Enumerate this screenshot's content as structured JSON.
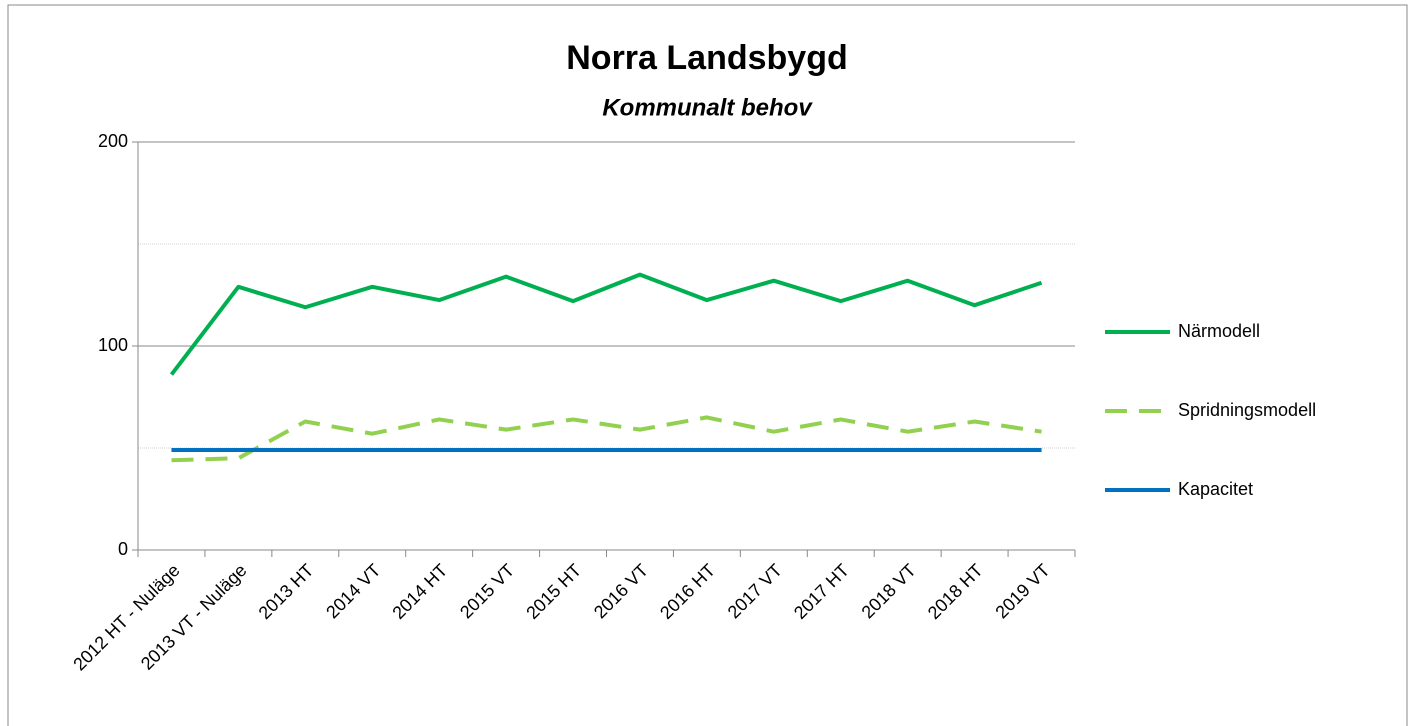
{
  "chart_data": {
    "type": "line",
    "title": "Norra Landsbygd",
    "subtitle": "Kommunalt behov",
    "categories": [
      "2012 HT - Nuläge",
      "2013 VT - Nuläge",
      "2013 HT",
      "2014 VT",
      "2014 HT",
      "2015 VT",
      "2015 HT",
      "2016 VT",
      "2016 HT",
      "2017 VT",
      "2017 HT",
      "2018 VT",
      "2018 HT",
      "2019 VT"
    ],
    "series": [
      {
        "name": "Närmodell",
        "color": "#00b050",
        "dash": false,
        "values": [
          86,
          129,
          119,
          129,
          122.5,
          134,
          122,
          135,
          122.5,
          132,
          122,
          132,
          120,
          131
        ]
      },
      {
        "name": "Spridningsmodell",
        "color": "#92d050",
        "dash": true,
        "values": [
          44,
          45,
          63,
          57,
          64,
          59,
          64,
          59,
          65,
          58,
          64,
          58,
          63,
          58
        ]
      },
      {
        "name": "Kapacitet",
        "color": "#0070c0",
        "dash": false,
        "values": [
          49,
          49,
          49,
          49,
          49,
          49,
          49,
          49,
          49,
          49,
          49,
          49,
          49,
          49
        ]
      }
    ],
    "ylim": [
      0,
      200
    ],
    "yticks": [
      0,
      100,
      200
    ],
    "minor_yticks": [
      50,
      150
    ],
    "grid": true,
    "legend": "right"
  }
}
